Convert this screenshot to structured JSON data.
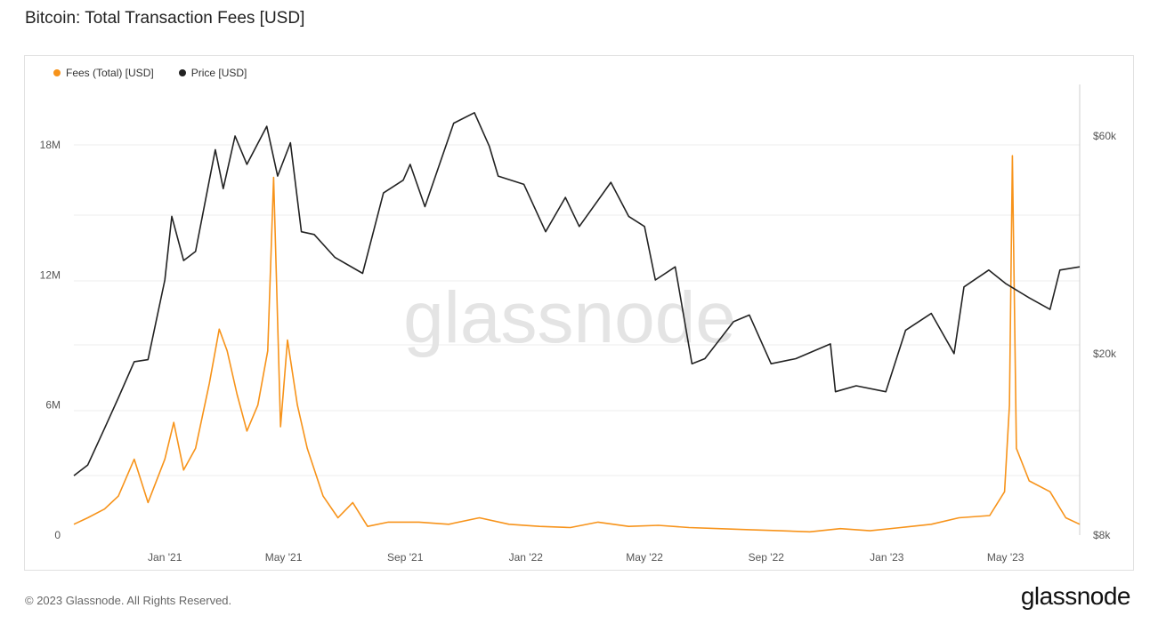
{
  "header": {
    "title": "Bitcoin: Total Transaction Fees [USD]"
  },
  "footer": {
    "copyright": "© 2023 Glassnode. All Rights Reserved.",
    "logo": "glassnode"
  },
  "watermark": "glassnode",
  "colors": {
    "fees": "#f7931a",
    "price": "#222222",
    "grid": "#ececec"
  },
  "chart_data": {
    "type": "line",
    "title": "Bitcoin: Total Transaction Fees [USD]",
    "x_start": "2020-10-01",
    "x_end": "2023-07-15",
    "x_ticks": [
      "Jan '21",
      "May '21",
      "Sep '21",
      "Jan '22",
      "May '22",
      "Sep '22",
      "Jan '23",
      "May '23"
    ],
    "x_tick_dates": [
      "2021-01-01",
      "2021-05-01",
      "2021-09-01",
      "2022-01-01",
      "2022-05-01",
      "2022-09-01",
      "2023-01-01",
      "2023-05-01"
    ],
    "y_left": {
      "ticks": [
        "0",
        "6M",
        "12M",
        "18M"
      ],
      "tick_values": [
        0,
        6000000,
        12000000,
        18000000
      ],
      "range": [
        0,
        18000000
      ]
    },
    "y_right": {
      "ticks": [
        "$8k",
        "$20k",
        "$60k"
      ],
      "tick_values": [
        8000,
        20000,
        60000
      ],
      "scale": "log",
      "range": [
        8000,
        60000
      ]
    },
    "legend": {
      "placement": "top-left"
    },
    "series": [
      {
        "name": "Fees (Total) [USD]",
        "axis": "left",
        "points": [
          [
            "2020-10-01",
            500000
          ],
          [
            "2020-10-15",
            800000
          ],
          [
            "2020-11-01",
            1200000
          ],
          [
            "2020-11-15",
            1800000
          ],
          [
            "2020-12-01",
            3500000
          ],
          [
            "2020-12-15",
            1500000
          ],
          [
            "2021-01-01",
            3500000
          ],
          [
            "2021-01-10",
            5200000
          ],
          [
            "2021-01-20",
            3000000
          ],
          [
            "2021-02-01",
            4000000
          ],
          [
            "2021-02-15",
            7000000
          ],
          [
            "2021-02-25",
            9500000
          ],
          [
            "2021-03-05",
            8500000
          ],
          [
            "2021-03-15",
            6500000
          ],
          [
            "2021-03-25",
            4800000
          ],
          [
            "2021-04-05",
            6000000
          ],
          [
            "2021-04-15",
            8500000
          ],
          [
            "2021-04-21",
            16500000
          ],
          [
            "2021-04-28",
            5000000
          ],
          [
            "2021-05-05",
            9000000
          ],
          [
            "2021-05-15",
            6000000
          ],
          [
            "2021-05-25",
            4000000
          ],
          [
            "2021-06-10",
            1800000
          ],
          [
            "2021-06-25",
            800000
          ],
          [
            "2021-07-10",
            1500000
          ],
          [
            "2021-07-25",
            400000
          ],
          [
            "2021-08-15",
            600000
          ],
          [
            "2021-09-15",
            600000
          ],
          [
            "2021-10-15",
            500000
          ],
          [
            "2021-11-15",
            800000
          ],
          [
            "2021-12-15",
            500000
          ],
          [
            "2022-01-15",
            400000
          ],
          [
            "2022-02-15",
            350000
          ],
          [
            "2022-03-15",
            600000
          ],
          [
            "2022-04-15",
            400000
          ],
          [
            "2022-05-15",
            450000
          ],
          [
            "2022-06-15",
            350000
          ],
          [
            "2022-07-15",
            300000
          ],
          [
            "2022-08-15",
            250000
          ],
          [
            "2022-09-15",
            200000
          ],
          [
            "2022-10-15",
            150000
          ],
          [
            "2022-11-15",
            300000
          ],
          [
            "2022-12-15",
            200000
          ],
          [
            "2023-01-15",
            350000
          ],
          [
            "2023-02-15",
            500000
          ],
          [
            "2023-03-15",
            800000
          ],
          [
            "2023-04-15",
            900000
          ],
          [
            "2023-04-30",
            2000000
          ],
          [
            "2023-05-05",
            6000000
          ],
          [
            "2023-05-08",
            17500000
          ],
          [
            "2023-05-12",
            4000000
          ],
          [
            "2023-05-25",
            2500000
          ],
          [
            "2023-06-15",
            2000000
          ],
          [
            "2023-07-01",
            800000
          ],
          [
            "2023-07-15",
            500000
          ]
        ]
      },
      {
        "name": "Price [USD]",
        "axis": "right",
        "points": [
          [
            "2020-10-01",
            10800
          ],
          [
            "2020-10-15",
            11400
          ],
          [
            "2020-11-01",
            13700
          ],
          [
            "2020-11-15",
            16000
          ],
          [
            "2020-12-01",
            19200
          ],
          [
            "2020-12-15",
            19400
          ],
          [
            "2021-01-01",
            29000
          ],
          [
            "2021-01-08",
            40000
          ],
          [
            "2021-01-20",
            32000
          ],
          [
            "2021-02-01",
            33500
          ],
          [
            "2021-02-15",
            48000
          ],
          [
            "2021-02-21",
            56000
          ],
          [
            "2021-03-01",
            46000
          ],
          [
            "2021-03-13",
            60000
          ],
          [
            "2021-03-25",
            52000
          ],
          [
            "2021-04-14",
            63000
          ],
          [
            "2021-04-25",
            49000
          ],
          [
            "2021-05-08",
            58000
          ],
          [
            "2021-05-19",
            37000
          ],
          [
            "2021-06-01",
            36500
          ],
          [
            "2021-06-22",
            32500
          ],
          [
            "2021-07-20",
            30000
          ],
          [
            "2021-08-10",
            45000
          ],
          [
            "2021-08-30",
            48000
          ],
          [
            "2021-09-06",
            52000
          ],
          [
            "2021-09-21",
            42000
          ],
          [
            "2021-10-20",
            64000
          ],
          [
            "2021-11-10",
            67500
          ],
          [
            "2021-11-25",
            57000
          ],
          [
            "2021-12-04",
            49000
          ],
          [
            "2021-12-30",
            47000
          ],
          [
            "2022-01-21",
            37000
          ],
          [
            "2022-02-10",
            44000
          ],
          [
            "2022-02-24",
            38000
          ],
          [
            "2022-03-28",
            47500
          ],
          [
            "2022-04-15",
            40000
          ],
          [
            "2022-05-01",
            38000
          ],
          [
            "2022-05-12",
            29000
          ],
          [
            "2022-06-01",
            31000
          ],
          [
            "2022-06-18",
            19000
          ],
          [
            "2022-07-01",
            19500
          ],
          [
            "2022-07-30",
            23500
          ],
          [
            "2022-08-15",
            24300
          ],
          [
            "2022-09-06",
            19000
          ],
          [
            "2022-10-01",
            19500
          ],
          [
            "2022-11-05",
            21000
          ],
          [
            "2022-11-10",
            16500
          ],
          [
            "2022-12-01",
            17000
          ],
          [
            "2022-12-31",
            16500
          ],
          [
            "2023-01-20",
            22500
          ],
          [
            "2023-02-15",
            24500
          ],
          [
            "2023-03-10",
            20000
          ],
          [
            "2023-03-20",
            28000
          ],
          [
            "2023-04-14",
            30500
          ],
          [
            "2023-05-01",
            28500
          ],
          [
            "2023-05-25",
            26500
          ],
          [
            "2023-06-15",
            25000
          ],
          [
            "2023-06-25",
            30500
          ],
          [
            "2023-07-15",
            31000
          ]
        ]
      }
    ]
  }
}
